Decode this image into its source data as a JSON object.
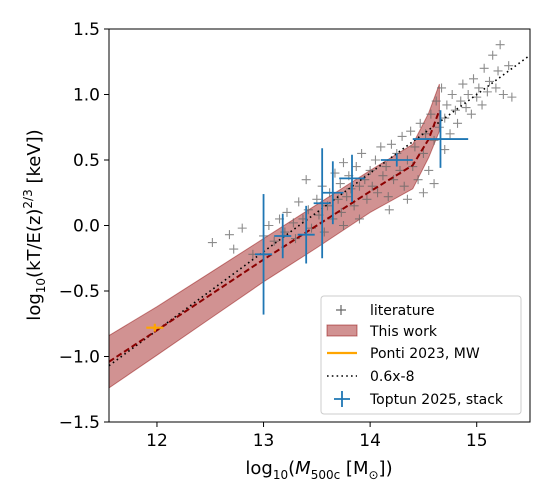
{
  "chart_data": {
    "type": "scatter",
    "xlabel_prefix": "log",
    "xlabel_sub": "10",
    "xlabel_open": "(",
    "xlabel_M": "M",
    "xlabel_M_sub": "500c",
    "xlabel_unit_open": " [M",
    "xlabel_unit_sub": "⊙",
    "xlabel_close": "])",
    "ylabel_prefix": "log",
    "ylabel_sub": "10",
    "ylabel_mid": "(kT/E(z)",
    "ylabel_sup": "2/3",
    "ylabel_end": " [keV])",
    "xlim": [
      11.55,
      15.5
    ],
    "ylim": [
      -1.5,
      1.5
    ],
    "x_ticks": [
      "12",
      "13",
      "14",
      "15"
    ],
    "y_ticks": [
      "1.5",
      "1.0",
      "0.5",
      "0.0",
      "−0.5",
      "−1.0",
      "−1.5"
    ],
    "legend_position": "lower-right",
    "legend": [
      "literature",
      "This work",
      "Ponti 2023, MW",
      "0.6x-8",
      "Toptun 2025, stack"
    ],
    "colors": {
      "literature": "#666666",
      "band_fill": "#b24a4a",
      "band_line": "#8b0000",
      "ponti": "#ffa500",
      "toptun": "#1f77b4",
      "relation": "#000000"
    },
    "relation_line": {
      "slope": 0.6,
      "intercept": -8,
      "label": "0.6x-8"
    },
    "this_work_band": [
      {
        "x": 11.55,
        "lo": -1.24,
        "hi": -0.84
      },
      {
        "x": 12.0,
        "lo": -0.99,
        "hi": -0.62
      },
      {
        "x": 12.5,
        "lo": -0.71,
        "hi": -0.36
      },
      {
        "x": 13.0,
        "lo": -0.43,
        "hi": -0.1
      },
      {
        "x": 13.5,
        "lo": -0.17,
        "hi": 0.16
      },
      {
        "x": 14.0,
        "lo": 0.1,
        "hi": 0.42
      },
      {
        "x": 14.4,
        "lo": 0.28,
        "hi": 0.62
      },
      {
        "x": 14.55,
        "lo": 0.52,
        "hi": 0.86
      },
      {
        "x": 14.65,
        "lo": 0.72,
        "hi": 1.08
      }
    ],
    "this_work_median": [
      {
        "x": 11.55,
        "y": -1.04
      },
      {
        "x": 12.0,
        "y": -0.8
      },
      {
        "x": 12.5,
        "y": -0.53
      },
      {
        "x": 13.0,
        "y": -0.26
      },
      {
        "x": 13.5,
        "y": 0.0
      },
      {
        "x": 14.0,
        "y": 0.26
      },
      {
        "x": 14.4,
        "y": 0.46
      },
      {
        "x": 14.55,
        "y": 0.66
      },
      {
        "x": 14.65,
        "y": 0.88
      }
    ],
    "ponti_2023": {
      "x": 11.98,
      "y": -0.78,
      "xerr": 0.08,
      "yerr": 0.03
    },
    "toptun_2025": [
      {
        "x": 13.0,
        "y": -0.22,
        "xerr": 0.08,
        "yerr": 0.46
      },
      {
        "x": 13.18,
        "y": -0.08,
        "xerr": 0.08,
        "yerr": 0.17
      },
      {
        "x": 13.4,
        "y": -0.07,
        "xerr": 0.08,
        "yerr": 0.22
      },
      {
        "x": 13.55,
        "y": 0.17,
        "xerr": 0.08,
        "yerr": 0.42
      },
      {
        "x": 13.65,
        "y": 0.25,
        "xerr": 0.1,
        "yerr": 0.24
      },
      {
        "x": 13.83,
        "y": 0.36,
        "xerr": 0.12,
        "yerr": 0.18
      },
      {
        "x": 14.25,
        "y": 0.5,
        "xerr": 0.15,
        "yerr": 0.05
      },
      {
        "x": 14.66,
        "y": 0.66,
        "xerr": 0.26,
        "yerr": 0.22
      }
    ],
    "literature": [
      {
        "x": 12.52,
        "y": -0.13
      },
      {
        "x": 12.68,
        "y": -0.07
      },
      {
        "x": 12.72,
        "y": -0.18
      },
      {
        "x": 12.8,
        "y": -0.02
      },
      {
        "x": 12.9,
        "y": -0.22
      },
      {
        "x": 13.0,
        "y": -0.08
      },
      {
        "x": 13.05,
        "y": 0.0
      },
      {
        "x": 13.1,
        "y": -0.12
      },
      {
        "x": 13.15,
        "y": 0.05
      },
      {
        "x": 13.2,
        "y": -0.05
      },
      {
        "x": 13.22,
        "y": 0.1
      },
      {
        "x": 13.28,
        "y": 0.02
      },
      {
        "x": 13.3,
        "y": -0.1
      },
      {
        "x": 13.33,
        "y": 0.18
      },
      {
        "x": 13.37,
        "y": 0.05
      },
      {
        "x": 13.4,
        "y": 0.35
      },
      {
        "x": 13.42,
        "y": 0.12
      },
      {
        "x": 13.45,
        "y": -0.02
      },
      {
        "x": 13.5,
        "y": 0.2
      },
      {
        "x": 13.52,
        "y": 0.08
      },
      {
        "x": 13.55,
        "y": 0.3
      },
      {
        "x": 13.57,
        "y": -0.05
      },
      {
        "x": 13.6,
        "y": 0.15
      },
      {
        "x": 13.62,
        "y": 0.25
      },
      {
        "x": 13.65,
        "y": 0.05
      },
      {
        "x": 13.67,
        "y": 0.4
      },
      {
        "x": 13.7,
        "y": 0.2
      },
      {
        "x": 13.72,
        "y": 0.32
      },
      {
        "x": 13.73,
        "y": 0.1
      },
      {
        "x": 13.75,
        "y": 0.48
      },
      {
        "x": 13.78,
        "y": 0.22
      },
      {
        "x": 13.8,
        "y": 0.38
      },
      {
        "x": 13.82,
        "y": 0.28
      },
      {
        "x": 13.85,
        "y": 0.15
      },
      {
        "x": 13.87,
        "y": 0.45
      },
      {
        "x": 13.9,
        "y": 0.3
      },
      {
        "x": 13.92,
        "y": 0.55
      },
      {
        "x": 13.95,
        "y": 0.35
      },
      {
        "x": 13.97,
        "y": 0.2
      },
      {
        "x": 14.0,
        "y": 0.42
      },
      {
        "x": 14.02,
        "y": 0.3
      },
      {
        "x": 14.05,
        "y": 0.5
      },
      {
        "x": 14.07,
        "y": 0.25
      },
      {
        "x": 14.1,
        "y": 0.6
      },
      {
        "x": 14.12,
        "y": 0.38
      },
      {
        "x": 14.15,
        "y": 0.45
      },
      {
        "x": 14.17,
        "y": 0.22
      },
      {
        "x": 14.2,
        "y": 0.62
      },
      {
        "x": 14.22,
        "y": 0.35
      },
      {
        "x": 14.25,
        "y": 0.55
      },
      {
        "x": 14.28,
        "y": 0.42
      },
      {
        "x": 14.3,
        "y": 0.68
      },
      {
        "x": 14.32,
        "y": 0.3
      },
      {
        "x": 14.35,
        "y": 0.5
      },
      {
        "x": 14.38,
        "y": 0.72
      },
      {
        "x": 14.4,
        "y": 0.45
      },
      {
        "x": 14.42,
        "y": 0.6
      },
      {
        "x": 14.45,
        "y": 0.35
      },
      {
        "x": 14.47,
        "y": 0.78
      },
      {
        "x": 14.5,
        "y": 0.55
      },
      {
        "x": 14.52,
        "y": 0.7
      },
      {
        "x": 14.55,
        "y": 0.42
      },
      {
        "x": 14.57,
        "y": 0.85
      },
      {
        "x": 14.6,
        "y": 0.65
      },
      {
        "x": 14.62,
        "y": 0.95
      },
      {
        "x": 14.65,
        "y": 0.75
      },
      {
        "x": 14.67,
        "y": 1.05
      },
      {
        "x": 14.7,
        "y": 0.82
      },
      {
        "x": 14.72,
        "y": 0.92
      },
      {
        "x": 14.75,
        "y": 0.7
      },
      {
        "x": 14.77,
        "y": 1.0
      },
      {
        "x": 14.8,
        "y": 0.88
      },
      {
        "x": 14.82,
        "y": 0.78
      },
      {
        "x": 14.85,
        "y": 0.95
      },
      {
        "x": 14.87,
        "y": 1.08
      },
      {
        "x": 14.9,
        "y": 0.9
      },
      {
        "x": 14.92,
        "y": 1.0
      },
      {
        "x": 14.95,
        "y": 0.85
      },
      {
        "x": 14.97,
        "y": 1.12
      },
      {
        "x": 15.0,
        "y": 0.98
      },
      {
        "x": 15.02,
        "y": 1.05
      },
      {
        "x": 15.05,
        "y": 0.92
      },
      {
        "x": 15.07,
        "y": 1.2
      },
      {
        "x": 15.1,
        "y": 1.02
      },
      {
        "x": 15.12,
        "y": 1.1
      },
      {
        "x": 15.15,
        "y": 1.3
      },
      {
        "x": 15.18,
        "y": 1.05
      },
      {
        "x": 15.2,
        "y": 1.18
      },
      {
        "x": 15.22,
        "y": 1.38
      },
      {
        "x": 15.25,
        "y": 1.0
      },
      {
        "x": 15.3,
        "y": 1.22
      },
      {
        "x": 15.33,
        "y": 0.98
      },
      {
        "x": 14.7,
        "y": 0.58
      },
      {
        "x": 14.5,
        "y": 0.25
      },
      {
        "x": 14.35,
        "y": 0.2
      },
      {
        "x": 14.18,
        "y": 0.12
      },
      {
        "x": 13.9,
        "y": 0.05
      },
      {
        "x": 13.75,
        "y": 0.0
      },
      {
        "x": 14.6,
        "y": 0.32
      }
    ]
  }
}
